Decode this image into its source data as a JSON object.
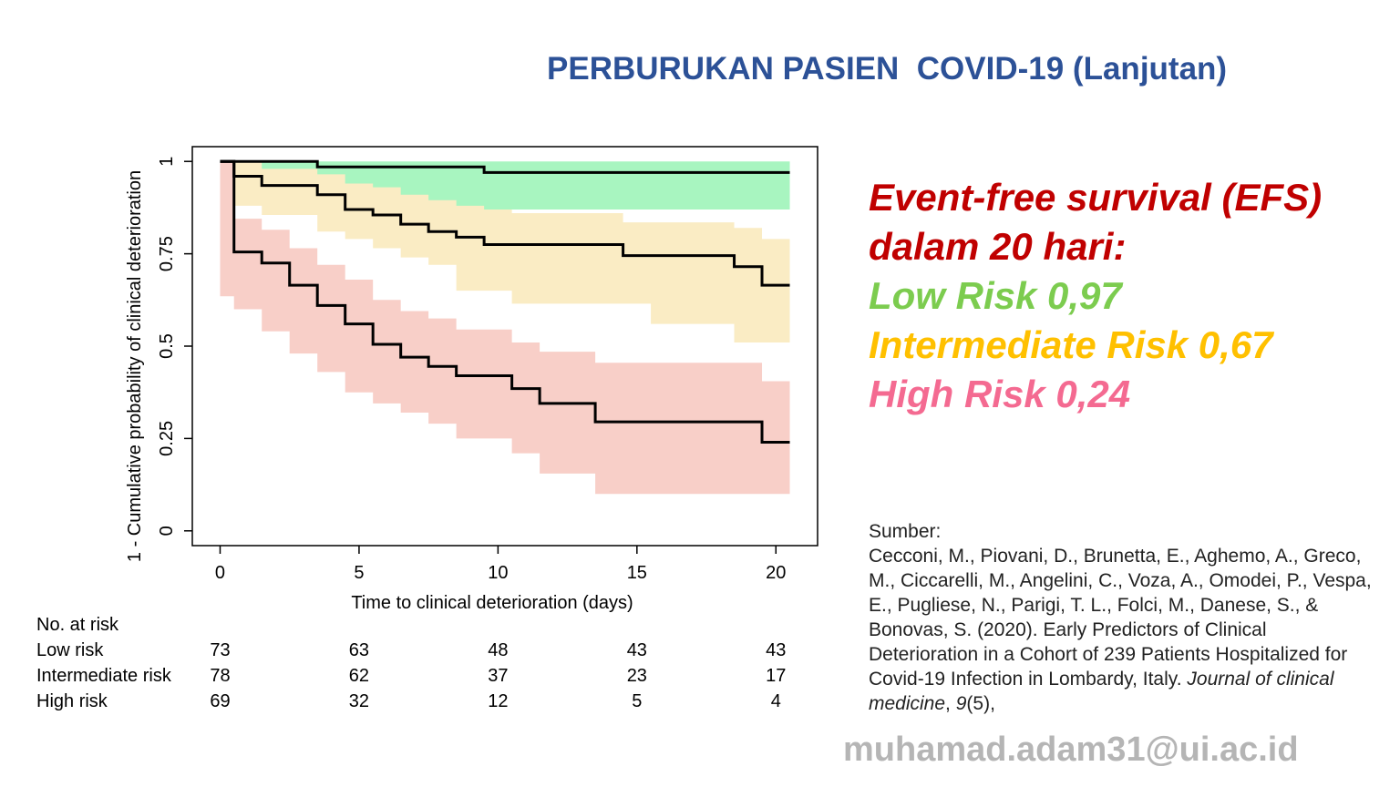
{
  "slide": {
    "title": "PERBURUKAN PASIEN  COVID-19 (Lanjutan)",
    "footer_email": "muhamad.adam31@ui.ac.id"
  },
  "efs": {
    "heading_line1": "Event-free survival (EFS)",
    "heading_line2": "dalam 20 hari:",
    "low": "Low Risk 0,97",
    "intermediate": "Intermediate Risk 0,67",
    "high": "High Risk 0,24",
    "colors": {
      "heading": "#c00000",
      "low": "#7ccc4f",
      "intermediate": "#ffc000",
      "high": "#f46a91"
    }
  },
  "source": {
    "label": "Sumber:",
    "citation_main": "Cecconi, M., Piovani, D., Brunetta, E., Aghemo, A., Greco, M., Ciccarelli, M., Angelini, C., Voza, A., Omodei, P., Vespa, E., Pugliese, N., Parigi, T. L., Folci, M., Danese, S., & Bonovas, S. (2020). Early Predictors of Clinical Deterioration in a Cohort of 239 Patients Hospitalized for Covid-19 Infection in Lombardy, Italy. ",
    "journal": "Journal of clinical medicine",
    "sep": ", ",
    "volume": "9",
    "issue": "(5),"
  },
  "chart_data": {
    "type": "line",
    "step": true,
    "xlabel": "Time to clinical deterioration (days)",
    "ylabel": "1 - Cumulative probability of clinical deterioration",
    "xlim": [
      -1,
      21.5
    ],
    "ylim": [
      -0.04,
      1.04
    ],
    "xticks": [
      0,
      5,
      10,
      15,
      20
    ],
    "xtick_labels": [
      "0",
      "5",
      "10",
      "15",
      "20"
    ],
    "yticks": [
      0,
      0.25,
      0.5,
      0.75,
      1
    ],
    "ytick_labels": [
      "0",
      "0.25",
      "0.5",
      "0.75",
      "1"
    ],
    "grid": false,
    "series": [
      {
        "id": "low",
        "color": "#000000",
        "ci_color": "#a8f5c0",
        "x": [
          0,
          3.5,
          9.5,
          20.5
        ],
        "y": [
          1.0,
          0.985,
          0.97,
          0.97
        ],
        "ci_x": [
          0,
          3.5,
          4.5,
          9.5,
          20.5
        ],
        "ci_lower": [
          1.0,
          0.95,
          0.925,
          0.87,
          0.87
        ],
        "ci_upper": [
          1.0,
          1.0,
          1.0,
          1.0,
          1.0
        ]
      },
      {
        "id": "intermediate",
        "color": "#000000",
        "ci_color": "#faecc4",
        "x": [
          0,
          0.5,
          1.5,
          3.5,
          4.5,
          5.5,
          6.5,
          7.5,
          8.5,
          9.5,
          10.5,
          14.5,
          15.5,
          18.5,
          19.5,
          20.5
        ],
        "y": [
          1.0,
          0.96,
          0.935,
          0.91,
          0.87,
          0.855,
          0.83,
          0.81,
          0.795,
          0.775,
          0.775,
          0.745,
          0.745,
          0.715,
          0.665,
          0.665
        ],
        "ci_x": [
          0,
          0.5,
          1.5,
          3.5,
          4.5,
          5.5,
          6.5,
          7.5,
          8.5,
          9.5,
          10.5,
          14.5,
          15.5,
          18.5,
          19.5,
          20.5
        ],
        "ci_lower": [
          1.0,
          0.91,
          0.88,
          0.855,
          0.81,
          0.79,
          0.765,
          0.74,
          0.72,
          0.65,
          0.65,
          0.615,
          0.615,
          0.56,
          0.51,
          0.51
        ],
        "ci_upper": [
          1.0,
          1.0,
          0.98,
          0.965,
          0.94,
          0.93,
          0.91,
          0.895,
          0.88,
          0.87,
          0.86,
          0.835,
          0.835,
          0.82,
          0.79,
          0.79
        ]
      },
      {
        "id": "high",
        "color": "#000000",
        "ci_color": "#f8cfc8",
        "x": [
          0,
          0.5,
          1.5,
          2.5,
          3.5,
          4.5,
          5.5,
          6.5,
          7.5,
          8.5,
          10.5,
          11.5,
          13.5,
          19.5,
          20.5
        ],
        "y": [
          1.0,
          0.755,
          0.725,
          0.665,
          0.61,
          0.56,
          0.505,
          0.47,
          0.445,
          0.42,
          0.385,
          0.345,
          0.295,
          0.24,
          0.24
        ],
        "ci_x": [
          0,
          0.5,
          1.5,
          2.5,
          3.5,
          4.5,
          5.5,
          6.5,
          7.5,
          8.5,
          10.5,
          11.5,
          13.5,
          19.5,
          20.5
        ],
        "ci_lower": [
          1.0,
          0.635,
          0.6,
          0.54,
          0.48,
          0.43,
          0.375,
          0.345,
          0.32,
          0.29,
          0.25,
          0.21,
          0.155,
          0.1,
          0.1
        ],
        "ci_upper": [
          1.0,
          0.845,
          0.815,
          0.765,
          0.72,
          0.68,
          0.625,
          0.595,
          0.575,
          0.545,
          0.51,
          0.485,
          0.455,
          0.405,
          0.405
        ]
      }
    ],
    "risk_table": {
      "title": "No. at risk",
      "columns": [
        0,
        5,
        10,
        15,
        20
      ],
      "rows": [
        {
          "label": "Low risk",
          "values": [
            73,
            63,
            48,
            43,
            43
          ]
        },
        {
          "label": "Intermediate risk",
          "values": [
            78,
            62,
            37,
            23,
            17
          ]
        },
        {
          "label": "High risk",
          "values": [
            69,
            32,
            12,
            5,
            4
          ]
        }
      ]
    }
  }
}
